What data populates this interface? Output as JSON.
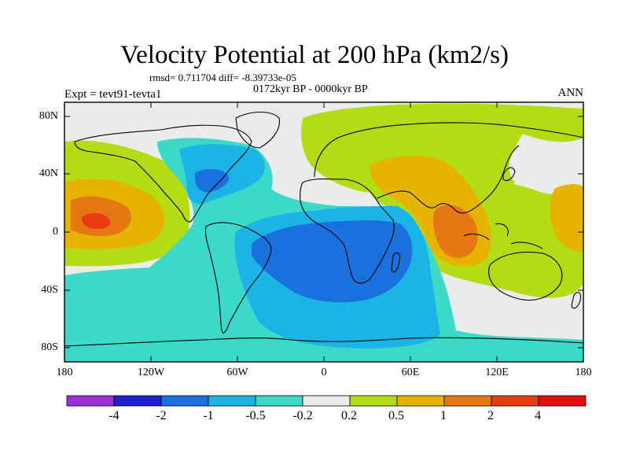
{
  "title": "Velocity Potential at 200 hPa (km2/s)",
  "stats": "rmsd= 0.711704 diff= -8.39733e-05",
  "experiment": "Expt = tevt91-tevta1",
  "period": "0172kyr BP - 0000kyr BP",
  "season": "ANN",
  "y_ticks": [
    "80N",
    "40N",
    "0",
    "40S",
    "80S"
  ],
  "x_ticks": [
    "180",
    "120W",
    "60W",
    "0",
    "60E",
    "120E",
    "180"
  ],
  "colorbar": {
    "labels": [
      "-4",
      "-2",
      "-1",
      "-0.5",
      "-0.2",
      "0.2",
      "0.5",
      "1",
      "2",
      "4"
    ],
    "colors": [
      "#9b30d8",
      "#2020d0",
      "#1a70dc",
      "#1ab4e6",
      "#3cd8c8",
      "#ebebeb",
      "#b4dc14",
      "#e6b400",
      "#e67814",
      "#e63c14",
      "#e01010"
    ]
  },
  "field_colors": {
    "background": "#ebebeb",
    "negative_weak": "#3cd8c8",
    "negative_mid": "#1ab4e6",
    "negative_strong": "#1a70dc",
    "positive_weak": "#b4dc14",
    "positive_mid": "#e6b400",
    "positive_strong": "#e67814",
    "positive_peak": "#e63c14"
  }
}
